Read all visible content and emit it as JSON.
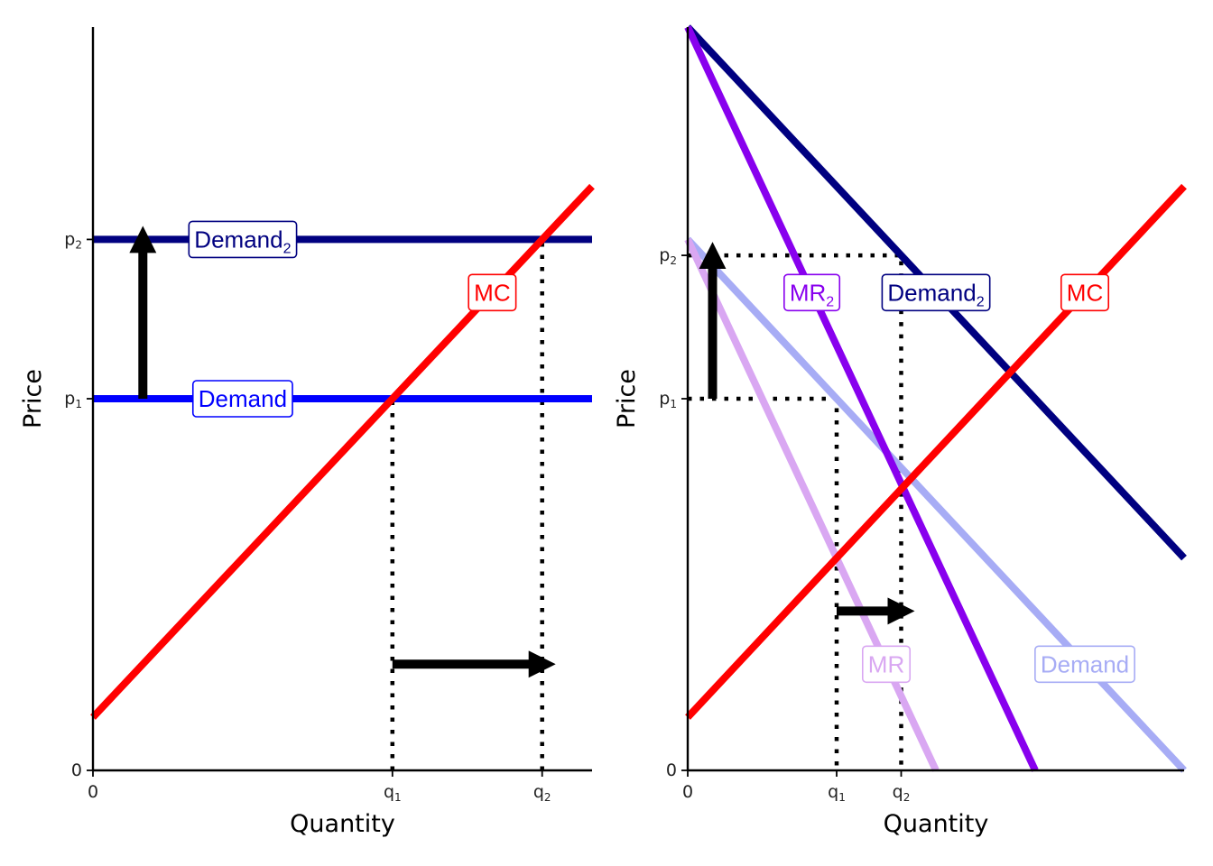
{
  "chart_data": [
    {
      "type": "line",
      "panel": "left",
      "xlabel": "Quantity",
      "ylabel": "Price",
      "xlim": [
        0,
        10
      ],
      "ylim": [
        0,
        14
      ],
      "x_ticks": [
        {
          "value": 0,
          "label": "0",
          "sub": ""
        },
        {
          "value": 6,
          "label": "q",
          "sub": "1"
        },
        {
          "value": 9,
          "label": "q",
          "sub": "2"
        }
      ],
      "y_ticks": [
        {
          "value": 0,
          "label": "0",
          "sub": ""
        },
        {
          "value": 7,
          "label": "p",
          "sub": "1"
        },
        {
          "value": 10,
          "label": "p",
          "sub": "2"
        }
      ],
      "series": [
        {
          "name": "Demand",
          "sub": "",
          "color": "#0000ff",
          "points": [
            [
              0,
              7
            ],
            [
              10,
              7
            ]
          ],
          "label_at": [
            3,
            7
          ]
        },
        {
          "name": "Demand",
          "sub": "2",
          "color": "#000080",
          "points": [
            [
              0,
              10
            ],
            [
              10,
              10
            ]
          ],
          "label_at": [
            3,
            10
          ]
        },
        {
          "name": "MC",
          "sub": "",
          "color": "#ff0000",
          "points": [
            [
              0,
              1
            ],
            [
              10,
              11
            ]
          ],
          "label_at": [
            8,
            9
          ]
        }
      ],
      "guides": [
        {
          "points": [
            [
              6,
              0
            ],
            [
              6,
              7
            ]
          ]
        },
        {
          "points": [
            [
              9,
              0
            ],
            [
              9,
              10
            ]
          ]
        }
      ],
      "arrows": [
        {
          "from": [
            1,
            7
          ],
          "to": [
            1,
            10
          ]
        },
        {
          "from": [
            6,
            2
          ],
          "to": [
            9,
            2
          ]
        }
      ]
    },
    {
      "type": "line",
      "panel": "right",
      "xlabel": "Quantity",
      "ylabel": "Price",
      "xlim": [
        0,
        10
      ],
      "ylim": [
        0,
        14
      ],
      "x_ticks": [
        {
          "value": 0,
          "label": "0",
          "sub": ""
        },
        {
          "value": 3,
          "label": "q",
          "sub": "1"
        },
        {
          "value": 4.3,
          "label": "q",
          "sub": "2"
        }
      ],
      "y_ticks": [
        {
          "value": 0,
          "label": "0",
          "sub": ""
        },
        {
          "value": 7,
          "label": "p",
          "sub": "1"
        },
        {
          "value": 9.7,
          "label": "p",
          "sub": "2"
        }
      ],
      "series": [
        {
          "name": "Demand",
          "sub": "",
          "color": "#a7acf5",
          "points": [
            [
              0,
              10
            ],
            [
              10,
              0
            ]
          ],
          "label_at": [
            8,
            2
          ]
        },
        {
          "name": "MR",
          "sub": "",
          "color": "#d9a7f2",
          "points": [
            [
              0,
              10
            ],
            [
              5,
              0
            ]
          ],
          "label_at": [
            4,
            2
          ]
        },
        {
          "name": "Demand",
          "sub": "2",
          "color": "#000080",
          "points": [
            [
              0,
              14
            ],
            [
              10,
              4
            ]
          ],
          "label_at": [
            5,
            9
          ]
        },
        {
          "name": "MR",
          "sub": "2",
          "color": "#8800ee",
          "points": [
            [
              0,
              14
            ],
            [
              7,
              0
            ]
          ],
          "label_at": [
            2.5,
            9
          ]
        },
        {
          "name": "MC",
          "sub": "",
          "color": "#ff0000",
          "points": [
            [
              0,
              1
            ],
            [
              10,
              11
            ]
          ],
          "label_at": [
            8,
            9
          ]
        }
      ],
      "guides": [
        {
          "points": [
            [
              0,
              7
            ],
            [
              3,
              7
            ],
            [
              3,
              0
            ]
          ]
        },
        {
          "points": [
            [
              0,
              9.7
            ],
            [
              4.3,
              9.7
            ],
            [
              4.3,
              0
            ]
          ]
        }
      ],
      "arrows": [
        {
          "from": [
            0.5,
            7
          ],
          "to": [
            0.5,
            9.7
          ]
        },
        {
          "from": [
            3,
            3
          ],
          "to": [
            4.3,
            3
          ]
        }
      ]
    }
  ]
}
